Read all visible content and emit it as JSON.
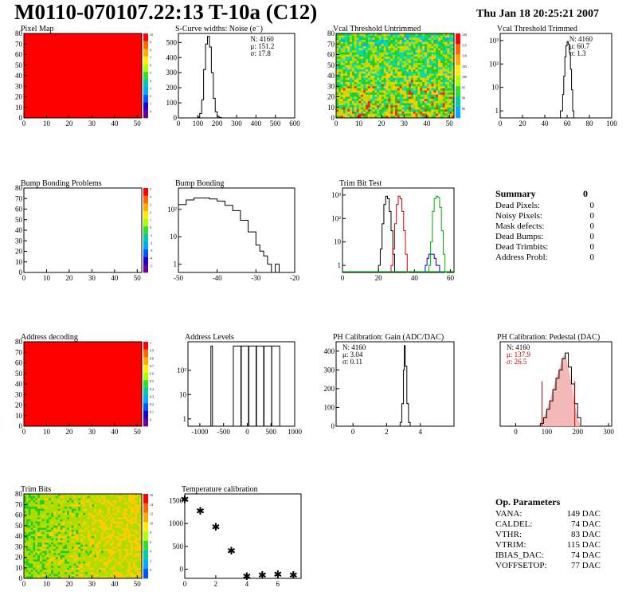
{
  "header": {
    "title": "M0110-070107.22:13 T-10a (C12)",
    "date": "Thu Jan 18 20:25:21 2007"
  },
  "summary": {
    "title": "Summary",
    "total": "0",
    "rows": [
      {
        "label": "Dead Pixels:",
        "value": "0"
      },
      {
        "label": "Noisy Pixels:",
        "value": "0"
      },
      {
        "label": "Mask defects:",
        "value": "0"
      },
      {
        "label": "Dead Bumps:",
        "value": "0"
      },
      {
        "label": "Dead Trimbits:",
        "value": "0"
      },
      {
        "label": "Address Probl:",
        "value": "0"
      }
    ]
  },
  "op_params": {
    "title": "Op. Parameters",
    "rows": [
      {
        "label": "VANA:",
        "value": "149 DAC"
      },
      {
        "label": "CALDEL:",
        "value": "74 DAC"
      },
      {
        "label": "VTHR:",
        "value": "83 DAC"
      },
      {
        "label": "VTRIM:",
        "value": "115 DAC"
      },
      {
        "label": "IBIAS_DAC:",
        "value": "74 DAC"
      },
      {
        "label": "VOFFSETOP:",
        "value": "77 DAC"
      }
    ]
  },
  "chart_data": [
    {
      "id": "pixel-map",
      "type": "heatmap",
      "title": "Pixel Map",
      "fill": "uniform-red",
      "xlim": [
        0,
        52
      ],
      "ylim": [
        0,
        80
      ],
      "xticks": [
        0,
        10,
        20,
        30,
        40,
        50
      ],
      "yticks": [
        0,
        10,
        20,
        30,
        40,
        50,
        60,
        70,
        80
      ],
      "palette_labels": [
        "10",
        "9",
        "8",
        "7",
        "6",
        "5",
        "4",
        "3",
        "2",
        "1",
        "0"
      ]
    },
    {
      "id": "scurve-noise",
      "type": "line",
      "title": "S-Curve widths: Noise (e⁻)",
      "xlim": [
        0,
        600
      ],
      "ylim": [
        0,
        560
      ],
      "xticks": [
        0,
        100,
        200,
        300,
        400,
        500,
        600
      ],
      "yticks": [
        0,
        100,
        200,
        300,
        400,
        500
      ],
      "stats": [
        "N: 4160",
        "μ: 151.2",
        "σ: 17.8"
      ],
      "x": [
        90,
        100,
        110,
        120,
        130,
        140,
        150,
        160,
        170,
        180,
        190,
        200,
        210,
        220
      ],
      "y": [
        0,
        5,
        30,
        120,
        320,
        490,
        540,
        470,
        300,
        130,
        40,
        10,
        3,
        0
      ]
    },
    {
      "id": "vcal-untrimmed",
      "type": "heatmap",
      "title": "Vcal Threshold Untrimmed",
      "fill": "noise",
      "xlim": [
        0,
        52
      ],
      "ylim": [
        0,
        80
      ],
      "xticks": [
        0,
        10,
        20,
        30,
        40,
        50
      ],
      "yticks": [
        0,
        10,
        20,
        30,
        40,
        50,
        60,
        70,
        80
      ],
      "palette_labels": [
        "120",
        "115",
        "110",
        "105",
        "100",
        "95",
        "90",
        "85"
      ]
    },
    {
      "id": "vcal-trimmed",
      "type": "line",
      "log_y": true,
      "title": "Vcal Threshold Trimmed",
      "xlim": [
        0,
        100
      ],
      "ylim": [
        0.5,
        2000
      ],
      "xticks": [
        0,
        20,
        40,
        60,
        80,
        100
      ],
      "yticks": [
        {
          "v": 1,
          "t": "1"
        },
        {
          "v": 10,
          "t": "10"
        },
        {
          "v": 100,
          "t": "10²"
        },
        {
          "v": 1000,
          "t": "10³"
        }
      ],
      "stats": [
        "N: 4160",
        "μ: 60.7",
        "σ: 1.3"
      ],
      "x": [
        54,
        56,
        57,
        58,
        59,
        60,
        61,
        62,
        63,
        64,
        65,
        66
      ],
      "y": [
        1,
        5,
        30,
        200,
        600,
        900,
        700,
        300,
        60,
        8,
        1,
        0.5
      ]
    },
    {
      "id": "bump-bonding-problems",
      "type": "heatmap",
      "title": "Bump Bonding Problems",
      "fill": "empty",
      "xlim": [
        0,
        52
      ],
      "ylim": [
        0,
        80
      ],
      "xticks": [
        0,
        10,
        20,
        30,
        40,
        50
      ],
      "yticks": [
        0,
        10,
        20,
        30,
        40,
        50,
        60,
        70,
        80
      ],
      "palette_labels": [
        "5",
        "4",
        "3",
        "2",
        "1",
        "0",
        "-1",
        "-2",
        "-3",
        "-4",
        "-5"
      ]
    },
    {
      "id": "bump-bonding",
      "type": "line",
      "log_y": true,
      "title": "Bump Bonding",
      "xlim": [
        -50,
        -20
      ],
      "ylim": [
        0.5,
        600
      ],
      "xticks": [
        -50,
        -40,
        -30,
        -20
      ],
      "yticks": [
        {
          "v": 1,
          "t": "1"
        },
        {
          "v": 10,
          "t": "10"
        },
        {
          "v": 100,
          "t": "10²"
        }
      ],
      "x": [
        -50,
        -48,
        -46,
        -44,
        -42,
        -40,
        -38,
        -36,
        -34,
        -32,
        -30,
        -29,
        -28,
        -27,
        -26,
        -25,
        -24
      ],
      "y": [
        150,
        220,
        260,
        260,
        240,
        200,
        140,
        90,
        40,
        15,
        5,
        3,
        2,
        1,
        0.5,
        1,
        0.5
      ]
    },
    {
      "id": "trim-bit-test",
      "type": "line",
      "log_y": true,
      "title": "Trim Bit Test",
      "xlim": [
        0,
        62
      ],
      "ylim": [
        0.5,
        2000
      ],
      "xticks": [
        0,
        20,
        40,
        60
      ],
      "yticks": [
        {
          "v": 1,
          "t": "1"
        },
        {
          "v": 10,
          "t": "10"
        },
        {
          "v": 100,
          "t": "10²"
        },
        {
          "v": 1000,
          "t": "10³"
        }
      ],
      "series": [
        {
          "color": "#000000",
          "x": [
            20,
            21,
            22,
            23,
            24,
            25,
            26,
            27,
            28,
            29
          ],
          "y": [
            1,
            5,
            60,
            400,
            900,
            700,
            200,
            30,
            3,
            0.5
          ]
        },
        {
          "color": "#cc0000",
          "x": [
            27,
            28,
            29,
            30,
            31,
            32,
            33,
            34,
            35,
            36
          ],
          "y": [
            1,
            5,
            60,
            400,
            900,
            700,
            200,
            30,
            3,
            0.5
          ]
        },
        {
          "color": "#0000cc",
          "x": [
            45,
            46,
            47,
            48,
            49,
            50,
            51,
            52,
            53,
            54
          ],
          "y": [
            0.5,
            1,
            2,
            3,
            3,
            3,
            2,
            1,
            1,
            0.5
          ]
        },
        {
          "color": "#00aa00",
          "x": [
            48,
            49,
            50,
            51,
            52,
            53,
            54,
            55,
            56,
            57
          ],
          "y": [
            1,
            10,
            200,
            700,
            900,
            800,
            300,
            30,
            3,
            0.5
          ]
        }
      ]
    },
    {
      "id": "address-decoding",
      "type": "heatmap",
      "title": "Address decoding",
      "fill": "uniform-red",
      "xlim": [
        0,
        52
      ],
      "ylim": [
        0,
        80
      ],
      "xticks": [
        0,
        10,
        20,
        30,
        40,
        50
      ],
      "yticks": [
        0,
        10,
        20,
        30,
        40,
        50,
        60,
        70,
        80
      ],
      "palette_labels": [
        "1",
        "0.9",
        "0.8",
        "0.7",
        "0.6",
        "0.5",
        "0.4",
        "0.3",
        "0.2",
        "0.1",
        "0"
      ]
    },
    {
      "id": "address-levels",
      "type": "line",
      "log_y": true,
      "title": "Address Levels",
      "xlim": [
        -1250,
        1000
      ],
      "ylim": [
        0.5,
        1500
      ],
      "xticks": [
        -1000,
        -500,
        0,
        500,
        1000
      ],
      "yticks": [
        {
          "v": 1,
          "t": "1"
        },
        {
          "v": 10,
          "t": "10"
        },
        {
          "v": 100,
          "t": "10²"
        }
      ],
      "spikes": [
        -750,
        -210,
        -50,
        110,
        270,
        430,
        600
      ],
      "spike_height": 1000
    },
    {
      "id": "ph-gain",
      "type": "line",
      "title": "PH Calibration: Gain (ADC/DAC)",
      "xlim": [
        -1,
        6
      ],
      "ylim": [
        0,
        450
      ],
      "xticks": [
        0,
        2,
        4
      ],
      "yticks": [
        0,
        100,
        200,
        300,
        400
      ],
      "stats": [
        "N: 4160",
        "μ: 3.04",
        "σ: 0.11"
      ],
      "x": [
        2.6,
        2.8,
        2.9,
        3.0,
        3.05,
        3.1,
        3.2,
        3.3,
        3.4
      ],
      "y": [
        0,
        20,
        120,
        300,
        430,
        320,
        120,
        20,
        0
      ]
    },
    {
      "id": "ph-pedestal",
      "type": "line",
      "title": "PH Calibration: Pedestal (DAC)",
      "xlim": [
        -50,
        310
      ],
      "ylim": [
        0,
        60
      ],
      "xticks": [
        0,
        100,
        200,
        300
      ],
      "stats": [
        "N: 4160",
        "μ: 137.9",
        "σ: 26.5"
      ],
      "x": [
        70,
        80,
        90,
        100,
        110,
        120,
        130,
        140,
        150,
        160,
        170,
        180,
        190,
        200,
        210
      ],
      "y": [
        0,
        2,
        6,
        12,
        18,
        26,
        34,
        40,
        48,
        52,
        42,
        30,
        16,
        6,
        0
      ],
      "range_lines": [
        84.9,
        190.9
      ]
    },
    {
      "id": "trim-bits",
      "type": "heatmap",
      "title": "Trim Bits",
      "fill": "noise-green",
      "xlim": [
        0,
        52
      ],
      "ylim": [
        0,
        80
      ],
      "xticks": [
        0,
        10,
        20,
        30,
        40,
        50
      ],
      "yticks": [
        0,
        10,
        20,
        30,
        40,
        50,
        60,
        70,
        80
      ],
      "palette_labels": [
        "16",
        "14",
        "12",
        "10",
        "8",
        "6",
        "4",
        "2",
        "0"
      ]
    },
    {
      "id": "temperature-calibration",
      "type": "scatter",
      "title": "Temperature calibration",
      "xlim": [
        0,
        7.5
      ],
      "ylim": [
        -200,
        1650
      ],
      "xticks": [
        0,
        2,
        4,
        6
      ],
      "yticks": [
        0,
        500,
        1000,
        1500
      ],
      "x": [
        0,
        1,
        2,
        3,
        4,
        5,
        6,
        7
      ],
      "y": [
        1550,
        1300,
        950,
        430,
        -130,
        -100,
        -90,
        -100
      ]
    }
  ]
}
